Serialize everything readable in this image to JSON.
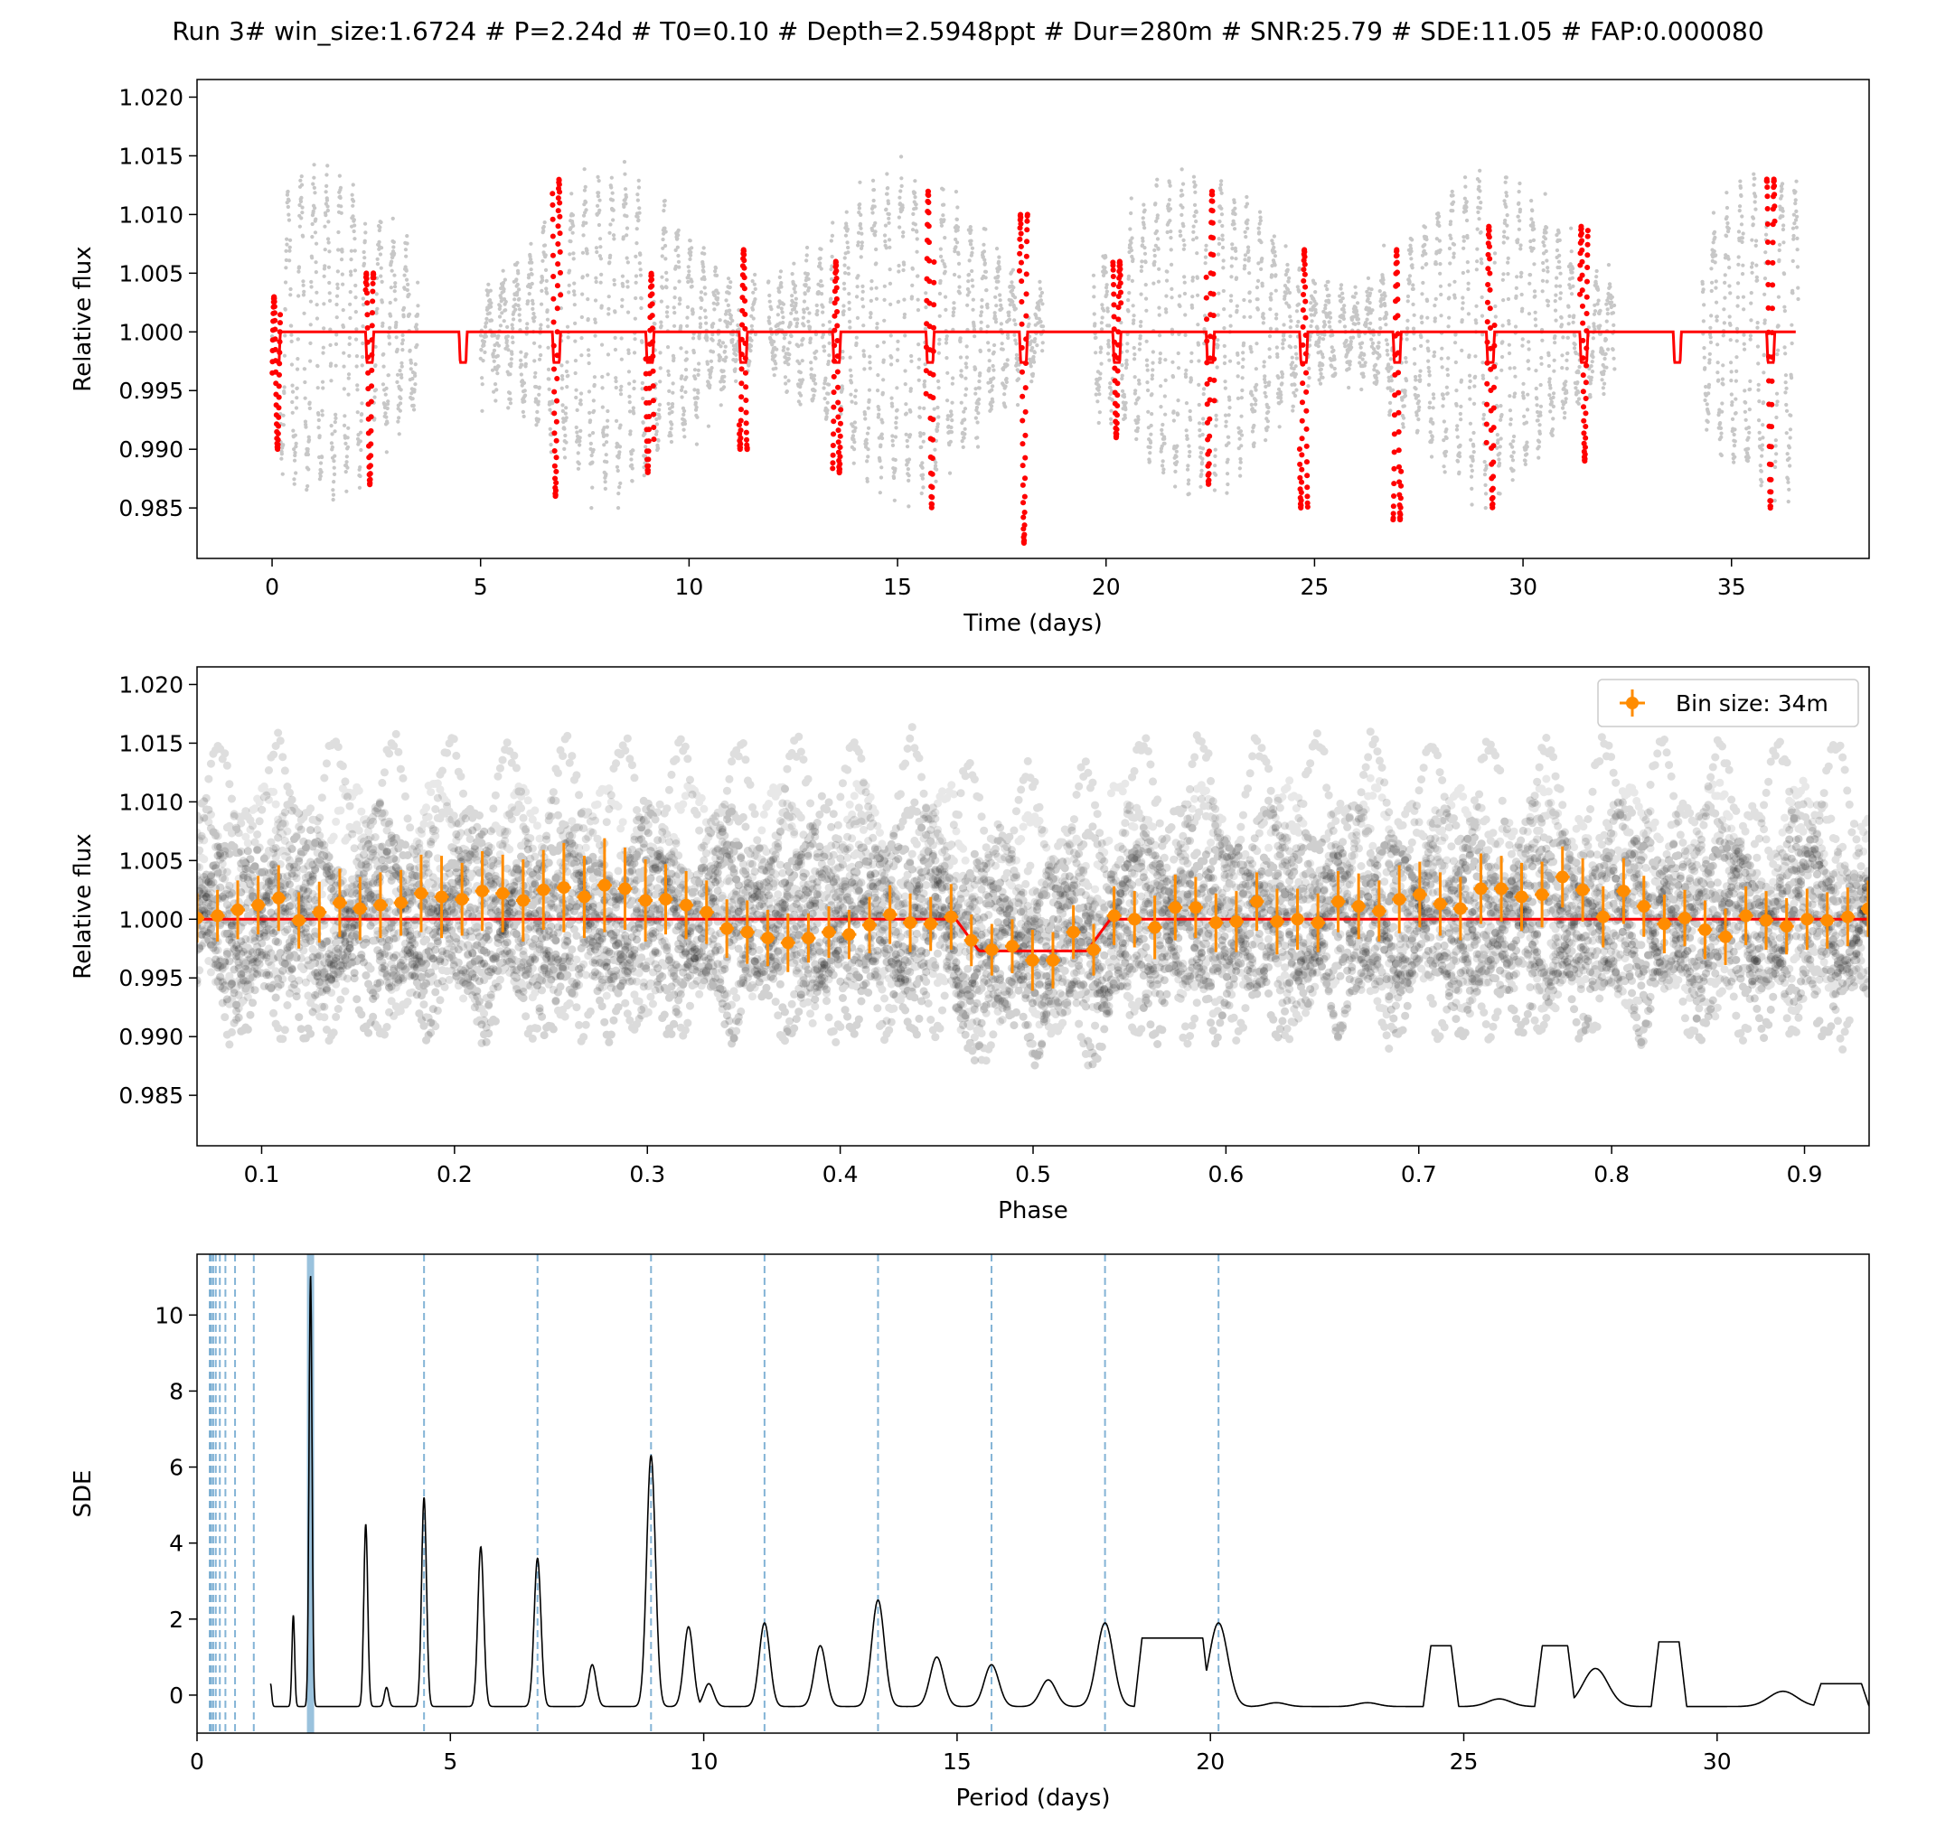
{
  "figure_title": "Run 3# win_size:1.6724 # P=2.24d # T0=0.10 # Depth=2.5948ppt # Dur=280m # SNR:25.79 # SDE:11.05 # FAP:0.000080",
  "colors": {
    "data_points": "#000000",
    "model": "#ff0000",
    "in_transit_points": "#ff0000",
    "binned": "#ff8c00",
    "periodogram": "#000000",
    "harmonic_lines": "#1f77b4"
  },
  "chart_data": [
    {
      "type": "scatter",
      "panel": "light-curve",
      "xlabel": "Time (days)",
      "ylabel": "Relative flux",
      "xlim": [
        -1.8,
        38.3
      ],
      "ylim": [
        0.9807,
        1.0215
      ],
      "xticks": [
        0,
        5,
        10,
        15,
        20,
        25,
        30,
        35
      ],
      "xtick_labels": [
        "0",
        "5",
        "10",
        "15",
        "20",
        "25",
        "30",
        "35"
      ],
      "yticks": [
        0.985,
        0.99,
        0.995,
        1.0,
        1.005,
        1.01,
        1.015,
        1.02
      ],
      "ytick_labels": [
        "0.985",
        "0.990",
        "0.995",
        "1.000",
        "1.005",
        "1.010",
        "1.015",
        "1.020"
      ],
      "data_segments": [
        [
          0.0,
          3.5
        ],
        [
          5.0,
          11.6
        ],
        [
          11.9,
          18.5
        ],
        [
          19.7,
          25.5
        ],
        [
          25.6,
          32.2
        ],
        [
          34.3,
          36.6
        ]
      ],
      "flux_range": [
        0.985,
        1.019
      ],
      "model": {
        "baseline": 1.0,
        "period": 2.24,
        "t0": 0.1,
        "depth": 0.0026,
        "duration_days": 0.194,
        "t_start": 0.1,
        "t_end": 36.55
      },
      "in_transit_epochs": [
        0.1,
        2.34,
        6.82,
        9.06,
        11.3,
        13.54,
        15.78,
        18.02,
        20.26,
        22.5,
        24.74,
        26.98,
        29.22,
        31.46,
        35.94
      ],
      "in_transit_flux_ranges": [
        [
          0.99,
          1.003
        ],
        [
          0.987,
          1.005
        ],
        [
          0.986,
          1.013
        ],
        [
          0.988,
          1.005
        ],
        [
          0.99,
          1.007
        ],
        [
          0.988,
          1.006
        ],
        [
          0.985,
          1.012
        ],
        [
          0.982,
          1.01
        ],
        [
          0.991,
          1.006
        ],
        [
          0.987,
          1.012
        ],
        [
          0.985,
          1.007
        ],
        [
          0.984,
          1.007
        ],
        [
          0.985,
          1.009
        ],
        [
          0.989,
          1.009
        ],
        [
          0.985,
          1.013
        ]
      ]
    },
    {
      "type": "scatter",
      "panel": "phase-folded",
      "xlabel": "Phase",
      "ylabel": "Relative flux",
      "xlim": [
        0.0665,
        0.9335
      ],
      "ylim": [
        0.9807,
        1.0215
      ],
      "xticks": [
        0.1,
        0.2,
        0.3,
        0.4,
        0.5,
        0.6,
        0.7,
        0.8,
        0.9
      ],
      "xtick_labels": [
        "0.1",
        "0.2",
        "0.3",
        "0.4",
        "0.5",
        "0.6",
        "0.7",
        "0.8",
        "0.9"
      ],
      "yticks": [
        0.985,
        0.99,
        0.995,
        1.0,
        1.005,
        1.01,
        1.015,
        1.02
      ],
      "ytick_labels": [
        "0.985",
        "0.990",
        "0.995",
        "1.000",
        "1.005",
        "1.010",
        "1.015",
        "1.020"
      ],
      "flux_range": [
        0.983,
        1.019
      ],
      "model": {
        "baseline": 1.0,
        "phase_center": 0.5,
        "depth": 0.0027,
        "ingress_start": 0.46,
        "egress_end": 0.54
      },
      "legend": {
        "label": "Bin size: 34m",
        "position": "upper-right"
      },
      "binned_series": {
        "name": "Bin size: 34m",
        "phase": [
          0.0665,
          0.0771,
          0.0876,
          0.0982,
          0.1088,
          0.1193,
          0.1299,
          0.1405,
          0.151,
          0.1616,
          0.1722,
          0.1827,
          0.1933,
          0.2039,
          0.2144,
          0.225,
          0.2356,
          0.2461,
          0.2567,
          0.2673,
          0.2778,
          0.2884,
          0.299,
          0.3095,
          0.3201,
          0.3307,
          0.3412,
          0.3518,
          0.3624,
          0.3729,
          0.3835,
          0.3941,
          0.4046,
          0.4152,
          0.4258,
          0.4363,
          0.4469,
          0.4575,
          0.468,
          0.4786,
          0.4892,
          0.4997,
          0.5103,
          0.5209,
          0.5314,
          0.542,
          0.5526,
          0.5631,
          0.5737,
          0.5843,
          0.5948,
          0.6054,
          0.616,
          0.6265,
          0.6371,
          0.6477,
          0.6582,
          0.6688,
          0.6794,
          0.6899,
          0.7005,
          0.7111,
          0.7216,
          0.7322,
          0.7428,
          0.7533,
          0.7639,
          0.7745,
          0.785,
          0.7956,
          0.8062,
          0.8167,
          0.8273,
          0.8379,
          0.8484,
          0.859,
          0.8696,
          0.8801,
          0.8907,
          0.9013,
          0.9118,
          0.9224,
          0.933
        ],
        "flux": [
          1.0001,
          1.0003,
          1.0008,
          1.0012,
          1.0018,
          0.9999,
          1.0006,
          1.0014,
          1.0009,
          1.0012,
          1.0014,
          1.0022,
          1.0019,
          1.0017,
          1.0024,
          1.0022,
          1.0016,
          1.0025,
          1.0027,
          1.0019,
          1.0029,
          1.0026,
          1.0016,
          1.0017,
          1.0012,
          1.0006,
          0.9992,
          0.9989,
          0.9984,
          0.998,
          0.9984,
          0.9989,
          0.9987,
          0.9995,
          1.0004,
          0.9997,
          0.9996,
          1.0002,
          0.9982,
          0.9974,
          0.9977,
          0.9965,
          0.9965,
          0.9989,
          0.9974,
          1.0003,
          1.0,
          0.9993,
          1.001,
          1.001,
          0.9997,
          0.9998,
          1.0015,
          0.9998,
          1.0,
          0.9997,
          1.0015,
          1.0011,
          1.0007,
          1.0017,
          1.0021,
          1.0013,
          1.0009,
          1.0026,
          1.0026,
          1.0019,
          1.0021,
          1.0036,
          1.0025,
          1.0002,
          1.0024,
          1.0011,
          0.9996,
          1.0001,
          0.9991,
          0.9985,
          1.0003,
          0.9999,
          0.9994,
          1.0,
          0.9999,
          1.0002,
          1.0009
        ],
        "err": [
          0.0021,
          0.0022,
          0.0025,
          0.0025,
          0.0028,
          0.0024,
          0.0026,
          0.0029,
          0.0027,
          0.0028,
          0.0028,
          0.0033,
          0.0035,
          0.0031,
          0.0034,
          0.0033,
          0.0035,
          0.0034,
          0.0038,
          0.0035,
          0.004,
          0.0035,
          0.0035,
          0.003,
          0.0029,
          0.0027,
          0.0025,
          0.0027,
          0.0024,
          0.0025,
          0.0021,
          0.0022,
          0.0021,
          0.0024,
          0.0025,
          0.0025,
          0.0023,
          0.0028,
          0.0022,
          0.0022,
          0.0023,
          0.0026,
          0.0024,
          0.0023,
          0.0022,
          0.0025,
          0.0024,
          0.0027,
          0.0028,
          0.0026,
          0.0025,
          0.0026,
          0.0025,
          0.0028,
          0.0026,
          0.0025,
          0.0026,
          0.0028,
          0.0026,
          0.0029,
          0.0028,
          0.0027,
          0.0027,
          0.003,
          0.0028,
          0.0029,
          0.0028,
          0.0026,
          0.0027,
          0.0026,
          0.0028,
          0.0026,
          0.0025,
          0.0024,
          0.0025,
          0.0024,
          0.0025,
          0.0025,
          0.0024,
          0.0026,
          0.0024,
          0.0025,
          0.0024
        ]
      }
    },
    {
      "type": "line",
      "panel": "periodogram",
      "xlabel": "Period (days)",
      "ylabel": "SDE",
      "xlim": [
        0,
        33
      ],
      "ylim": [
        -1.0,
        11.6
      ],
      "xticks": [
        0,
        5,
        10,
        15,
        20,
        25,
        30
      ],
      "xtick_labels": [
        "0",
        "5",
        "10",
        "15",
        "20",
        "25",
        "30"
      ],
      "yticks": [
        0,
        2,
        4,
        6,
        8,
        10
      ],
      "ytick_labels": [
        "0",
        "2",
        "4",
        "6",
        "8",
        "10"
      ],
      "best_period": 2.24,
      "harmonic_periods": [
        0.25,
        0.28,
        0.32,
        0.37,
        0.45,
        0.56,
        0.75,
        1.12,
        4.48,
        6.72,
        8.96,
        11.2,
        13.44,
        15.68,
        17.92,
        20.16
      ],
      "peaks": [
        {
          "period": 1.45,
          "sde": 0.3
        },
        {
          "period": 1.9,
          "sde": 2.1
        },
        {
          "period": 2.24,
          "sde": 11.05
        },
        {
          "period": 3.33,
          "sde": 4.5
        },
        {
          "period": 3.74,
          "sde": 0.2
        },
        {
          "period": 4.48,
          "sde": 5.2
        },
        {
          "period": 5.6,
          "sde": 3.9
        },
        {
          "period": 6.72,
          "sde": 3.6
        },
        {
          "period": 7.8,
          "sde": 0.8
        },
        {
          "period": 8.96,
          "sde": 6.3
        },
        {
          "period": 9.7,
          "sde": 1.8
        },
        {
          "period": 10.1,
          "sde": 0.3
        },
        {
          "period": 11.2,
          "sde": 1.9
        },
        {
          "period": 12.3,
          "sde": 1.3
        },
        {
          "period": 13.44,
          "sde": 2.5
        },
        {
          "period": 14.6,
          "sde": 1.0
        },
        {
          "period": 15.68,
          "sde": 0.8
        },
        {
          "period": 16.8,
          "sde": 0.4
        },
        {
          "period": 17.92,
          "sde": 1.9
        },
        {
          "period": 20.16,
          "sde": 1.9
        },
        {
          "period": 21.3,
          "sde": -0.2
        },
        {
          "period": 23.1,
          "sde": -0.2
        },
        {
          "period": 25.7,
          "sde": -0.1
        },
        {
          "period": 27.6,
          "sde": 0.7
        },
        {
          "period": 31.3,
          "sde": 0.1
        }
      ],
      "broad_features": [
        {
          "from": 18.5,
          "to": 20.0,
          "sde": 1.5
        },
        {
          "from": 24.2,
          "to": 24.9,
          "sde": 1.3
        },
        {
          "from": 26.4,
          "to": 27.2,
          "sde": 1.3
        },
        {
          "from": 28.7,
          "to": 29.4,
          "sde": 1.4
        },
        {
          "from": 31.9,
          "to": 33.0,
          "sde": 0.3
        }
      ]
    }
  ]
}
